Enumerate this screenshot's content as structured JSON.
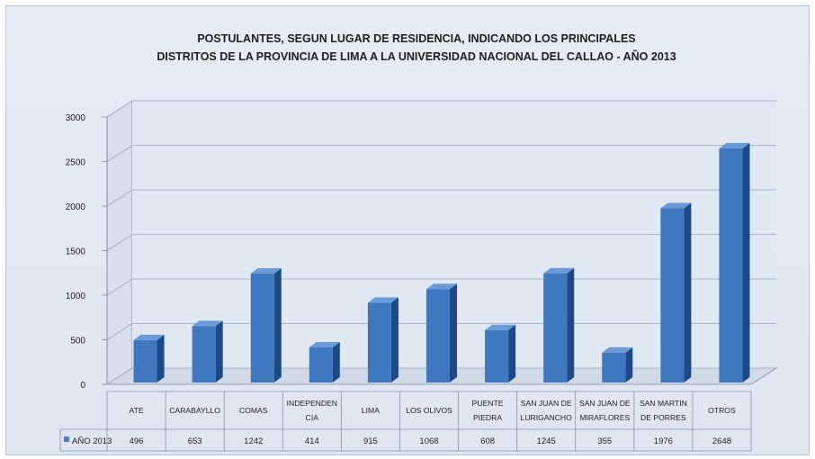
{
  "chart_data": {
    "type": "bar",
    "title_lines": [
      "POSTULANTES, SEGUN LUGAR DE RESIDENCIA, INDICANDO LOS PRINCIPALES",
      "DISTRITOS DE LA PROVINCIA DE LIMA A LA UNIVERSIDAD NACIONAL DEL CALLAO - AÑO 2013"
    ],
    "categories": [
      [
        "ATE"
      ],
      [
        "CARABAYLLO"
      ],
      [
        "COMAS"
      ],
      [
        "INDEPENDEN",
        "CIA"
      ],
      [
        "LIMA"
      ],
      [
        "LOS OLIVOS"
      ],
      [
        "PUENTE",
        "PIEDRA"
      ],
      [
        "SAN JUAN DE",
        "LURIGANCHO"
      ],
      [
        "SAN JUAN DE",
        "MIRAFLORES"
      ],
      [
        "SAN MARTIN",
        "DE PORRES"
      ],
      [
        "OTROS"
      ]
    ],
    "series": [
      {
        "name": "AÑO 2013",
        "values": [
          496,
          653,
          1242,
          414,
          915,
          1068,
          608,
          1245,
          355,
          1976,
          2648
        ],
        "value_labels": [
          "496",
          "653",
          "1242",
          "414",
          "915",
          "1068",
          "608",
          "1245",
          "355",
          "1976",
          "2648"
        ]
      }
    ],
    "y_ticks": [
      "0",
      "500",
      "1000",
      "1500",
      "2000",
      "2500",
      "3000"
    ],
    "ylim": [
      0,
      3000
    ],
    "grid": true,
    "legend": "data-table",
    "colors": {
      "bar_front": "#3f78c0",
      "bar_side": "#1d4a86",
      "bar_top": "#6a9ad8",
      "legend_marker": "#4a7fc4",
      "background": "#e3e9f2",
      "gridline": "#ffffff",
      "axis": "#7d8b9e",
      "text": "#1f1f1f"
    }
  }
}
